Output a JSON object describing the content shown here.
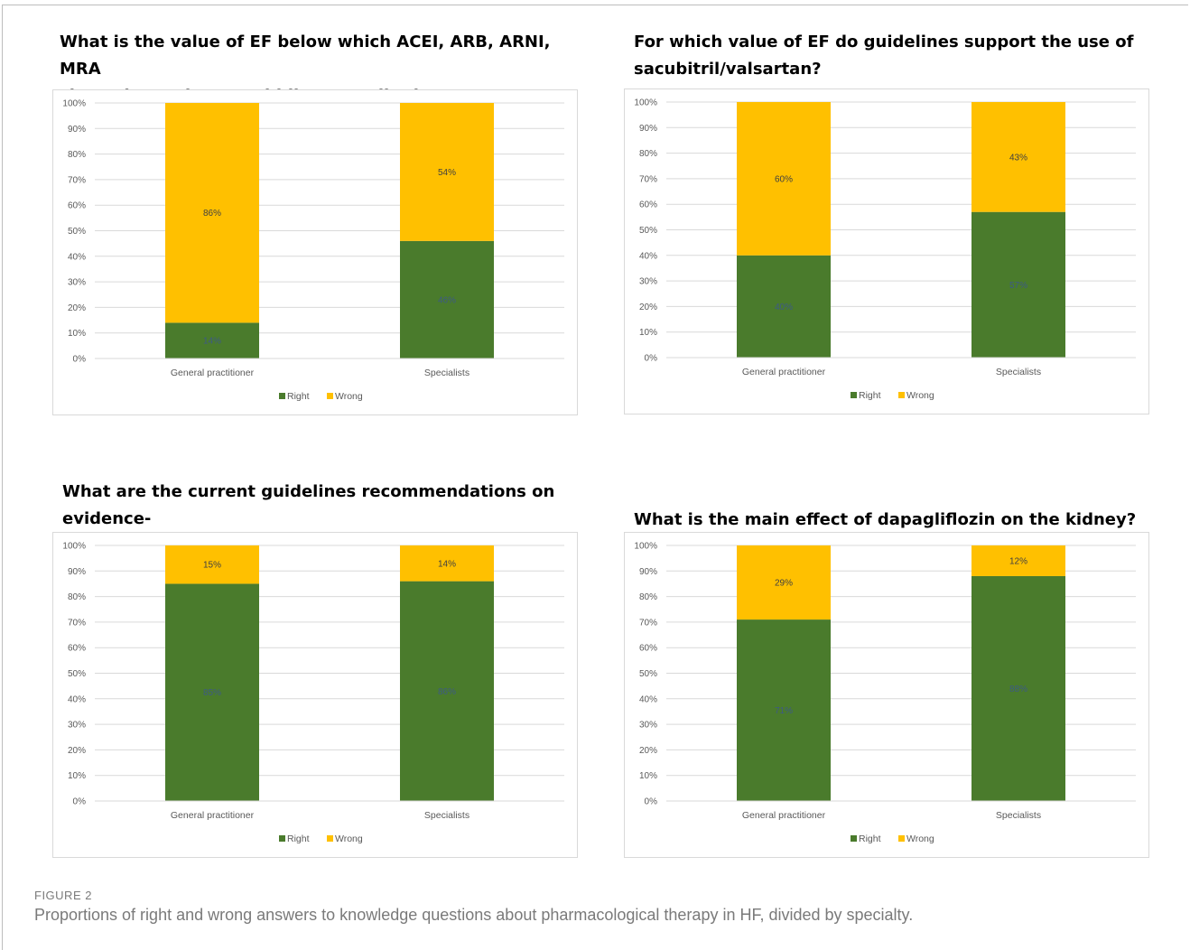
{
  "chart_data": [
    {
      "type": "bar",
      "title": "What is the value of EF below which ACEI, ARB, ARNI, MRA\nshowed to reduce morbidity/mortality in HF?",
      "categories": [
        "General practitioner",
        "Specialists"
      ],
      "series": [
        {
          "name": "Right",
          "values": [
            14,
            46
          ],
          "labels": [
            "14%",
            "46%"
          ]
        },
        {
          "name": "Wrong",
          "values": [
            86,
            54
          ],
          "labels": [
            "86%",
            "54%"
          ]
        }
      ],
      "yticks": [
        "0%",
        "10%",
        "20%",
        "30%",
        "40%",
        "50%",
        "60%",
        "70%",
        "80%",
        "90%",
        "100%"
      ],
      "ylim": [
        0,
        100
      ],
      "stacked": true,
      "grid": true,
      "legend": "bottom"
    },
    {
      "type": "bar",
      "title": "For which value of EF do guidelines support the use of\nsacubitril/valsartan?",
      "categories": [
        "General practitioner",
        "Specialists"
      ],
      "series": [
        {
          "name": "Right",
          "values": [
            40,
            57
          ],
          "labels": [
            "40%",
            "57%"
          ]
        },
        {
          "name": "Wrong",
          "values": [
            60,
            43
          ],
          "labels": [
            "60%",
            "43%"
          ]
        }
      ],
      "yticks": [
        "0%",
        "10%",
        "20%",
        "30%",
        "40%",
        "50%",
        "60%",
        "70%",
        "80%",
        "90%",
        "100%"
      ],
      "ylim": [
        0,
        100
      ],
      "stacked": true,
      "grid": true,
      "legend": "bottom"
    },
    {
      "type": "bar",
      "title": "What are the current guidelines recommendations on evidence-\nbased HF medical therapy in the elderly?",
      "categories": [
        "General practitioner",
        "Specialists"
      ],
      "series": [
        {
          "name": "Right",
          "values": [
            85,
            86
          ],
          "labels": [
            "85%",
            "86%"
          ]
        },
        {
          "name": "Wrong",
          "values": [
            15,
            14
          ],
          "labels": [
            "15%",
            "14%"
          ]
        }
      ],
      "yticks": [
        "0%",
        "10%",
        "20%",
        "30%",
        "40%",
        "50%",
        "60%",
        "70%",
        "80%",
        "90%",
        "100%"
      ],
      "ylim": [
        0,
        100
      ],
      "stacked": true,
      "grid": true,
      "legend": "bottom"
    },
    {
      "type": "bar",
      "title": "What is the main effect of dapagliflozin on the kidney?",
      "categories": [
        "General practitioner",
        "Specialists"
      ],
      "series": [
        {
          "name": "Right",
          "values": [
            71,
            88
          ],
          "labels": [
            "71%",
            "88%"
          ]
        },
        {
          "name": "Wrong",
          "values": [
            29,
            12
          ],
          "labels": [
            "29%",
            "12%"
          ]
        }
      ],
      "yticks": [
        "0%",
        "10%",
        "20%",
        "30%",
        "40%",
        "50%",
        "60%",
        "70%",
        "80%",
        "90%",
        "100%"
      ],
      "ylim": [
        0,
        100
      ],
      "stacked": true,
      "grid": true,
      "legend": "bottom"
    }
  ],
  "colors": {
    "right": "#4a7b2c",
    "wrong": "#ffc000"
  },
  "caption": {
    "label": "FIGURE 2",
    "text": "Proportions of right and wrong answers to knowledge questions about pharmacological therapy in HF, divided by specialty."
  }
}
